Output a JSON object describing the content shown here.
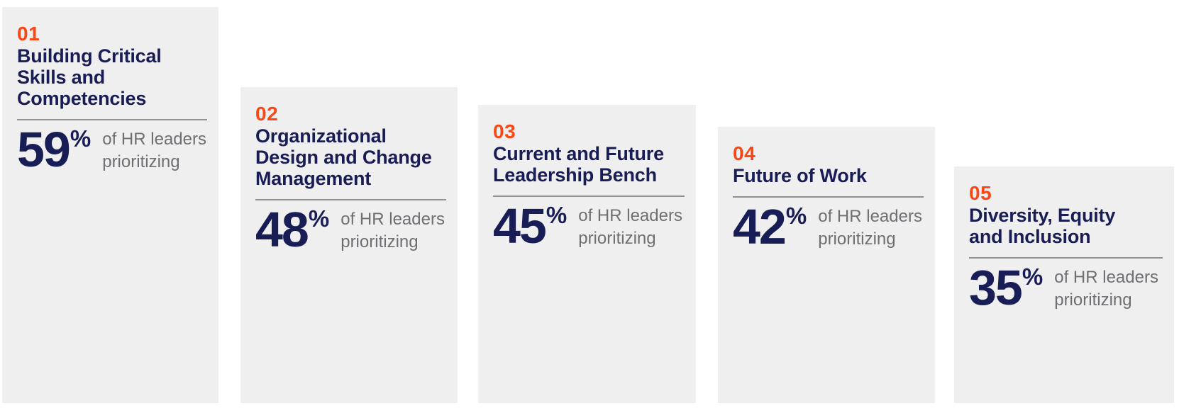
{
  "colors": {
    "card_background": "#efefef",
    "accent_orange": "#fb4616",
    "navy": "#191d55",
    "gray_text": "#6e6f72",
    "divider_gray": "#8f9194"
  },
  "stat_suffix": "%",
  "cards": [
    {
      "number": "01",
      "title_lines": [
        "Building Critical",
        "Skills and",
        "Competencies"
      ],
      "value": "59",
      "label_lines": [
        "of HR leaders",
        "prioritizing"
      ]
    },
    {
      "number": "02",
      "title_lines": [
        "Organizational",
        "Design and Change",
        "Management"
      ],
      "value": "48",
      "label_lines": [
        "of HR leaders",
        "prioritizing"
      ]
    },
    {
      "number": "03",
      "title_lines": [
        "Current and Future",
        "Leadership Bench"
      ],
      "value": "45",
      "label_lines": [
        "of HR leaders",
        "prioritizing"
      ]
    },
    {
      "number": "04",
      "title_lines": [
        "Future of Work"
      ],
      "value": "42",
      "label_lines": [
        "of HR leaders",
        "prioritizing"
      ]
    },
    {
      "number": "05",
      "title_lines": [
        "Diversity, Equity",
        "and Inclusion"
      ],
      "value": "35",
      "label_lines": [
        "of HR leaders",
        "prioritizing"
      ]
    }
  ],
  "chart_data": {
    "type": "bar",
    "title": "",
    "categories": [
      "Building Critical Skills and Competencies",
      "Organizational Design and Change Management",
      "Current and Future Leadership Bench",
      "Future of Work",
      "Diversity, Equity and Inclusion"
    ],
    "ranks": [
      "01",
      "02",
      "03",
      "04",
      "05"
    ],
    "values": [
      59,
      48,
      45,
      42,
      35
    ],
    "value_unit": "% of HR leaders prioritizing",
    "ylim": [
      0,
      100
    ],
    "layout": "ranked descending cards, bottom-aligned staircase"
  }
}
